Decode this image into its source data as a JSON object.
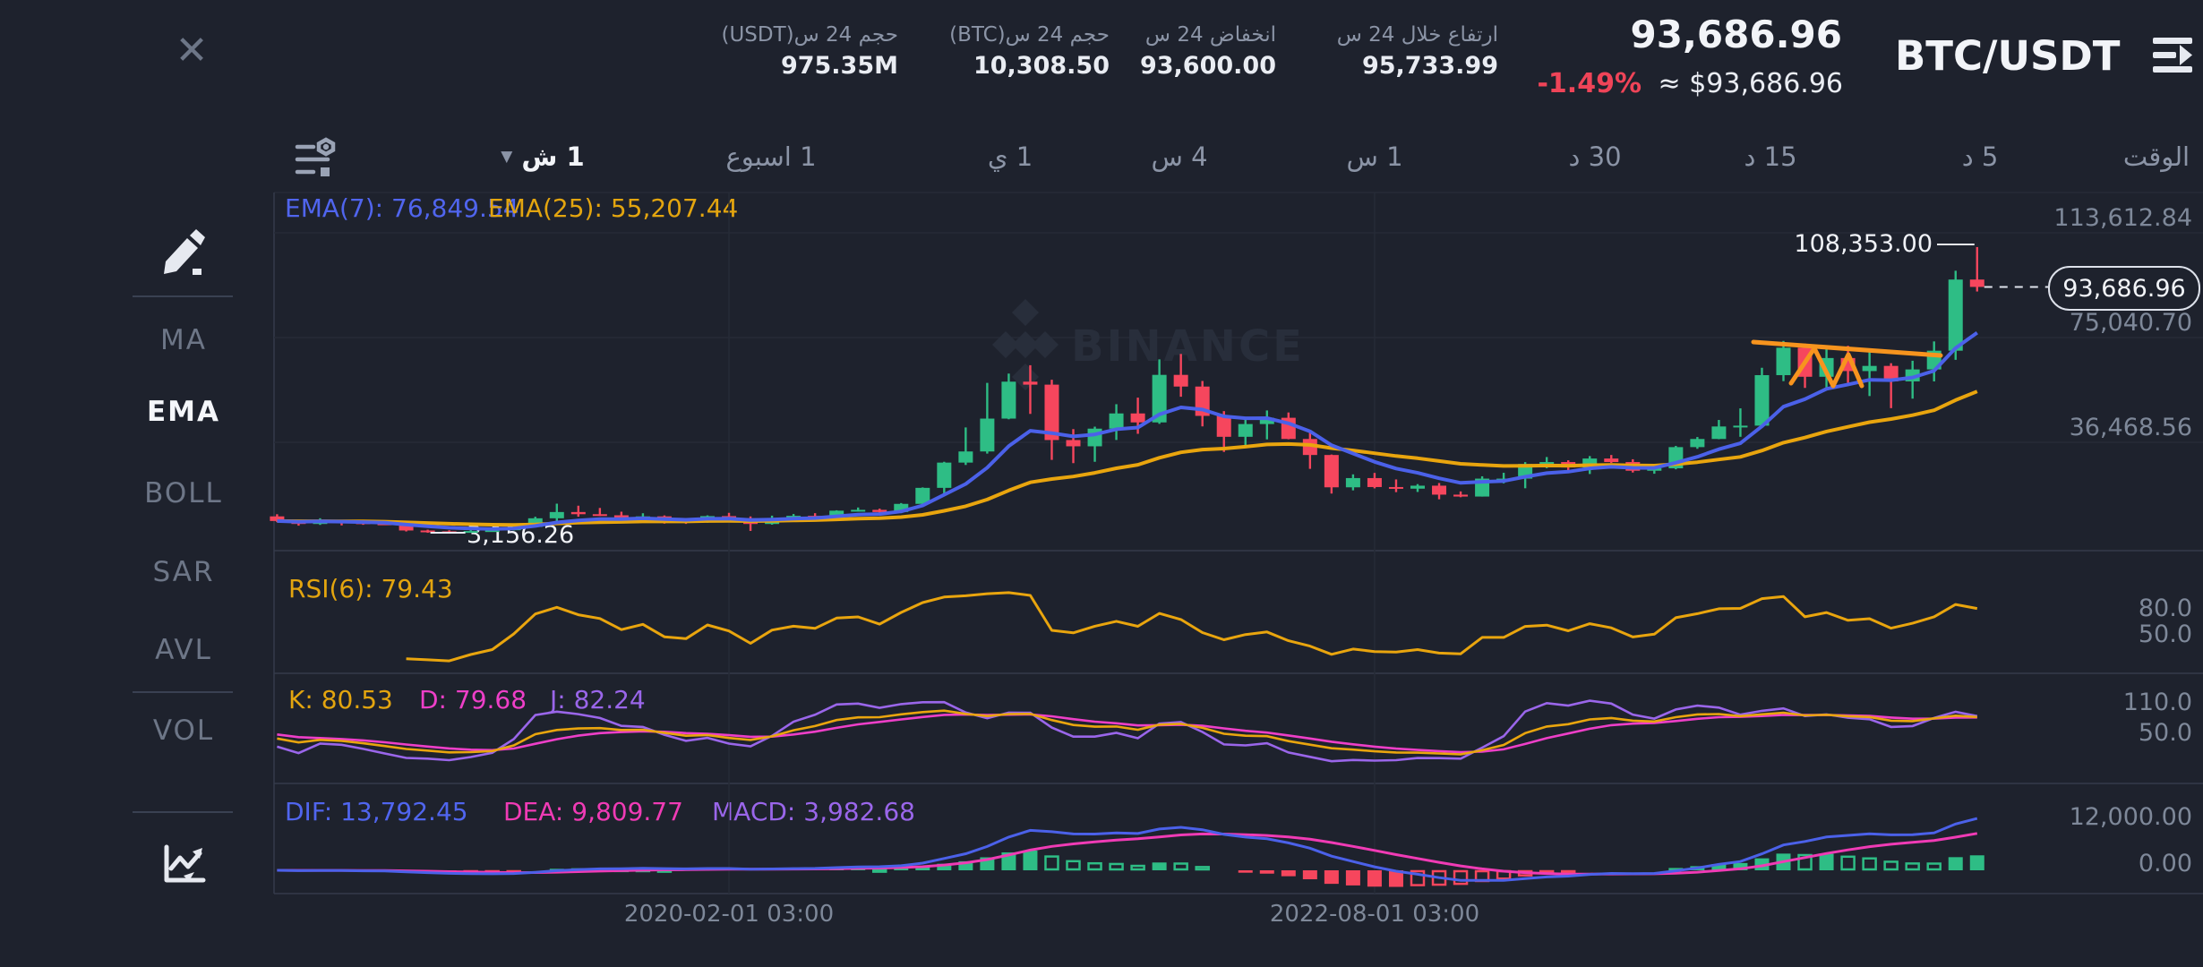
{
  "header": {
    "symbol": "BTC/USDT",
    "last_price": "93,686.96",
    "fiat_price": "≈ $93,686.96",
    "change_24h": "-1.49%",
    "stats": [
      {
        "label": "ارتفاع خلال 24 س",
        "value": "95,733.99"
      },
      {
        "label": "انخفاض 24 س",
        "value": "93,600.00"
      },
      {
        "label": "حجم 24 س(BTC)",
        "value": "10,308.50"
      },
      {
        "label": "حجم 24 س(USDT)",
        "value": "975.35M"
      }
    ]
  },
  "icons": {
    "close": "✕",
    "dropdown_caret": "▼",
    "switch_pair": "bars-with-arrow",
    "indicators_settings": "lines-and-shapes",
    "draw_tool": "pencil",
    "chart_style": "line-chart"
  },
  "toolbar": {
    "tabs": [
      {
        "label": "الوقت"
      },
      {
        "label": "5 د"
      },
      {
        "label": "15 د"
      },
      {
        "label": "30 د"
      },
      {
        "label": "1 س"
      },
      {
        "label": "4 س"
      },
      {
        "label": "1 ي"
      },
      {
        "label": "1 اسبوع"
      },
      {
        "label": "1 ش",
        "selected": true,
        "dropdown": true
      }
    ]
  },
  "sidebar": {
    "items": [
      {
        "label": "MA"
      },
      {
        "label": "EMA",
        "selected": true
      },
      {
        "label": "BOLL"
      },
      {
        "label": "SAR"
      },
      {
        "label": "AVL"
      },
      {
        "label": "VOL"
      }
    ]
  },
  "colors": {
    "up": "#2ebd85",
    "down": "#f6465d",
    "ema7": "#4b61e9",
    "ema25": "#e9a50e",
    "rsi": "#e9a50e",
    "k": "#e9a50e",
    "d": "#ee3fc8",
    "j": "#9a66ea",
    "dif": "#4b61e9",
    "dea": "#f03bb5",
    "macd": "#9a66ea",
    "change_negative": "#ef4458",
    "drawing": "#f7941e",
    "grid": "#262b37",
    "panel_border": "#353b4b",
    "watermark": "#282e3b"
  },
  "chart_data": {
    "type": "candlestick",
    "symbol": "BTC/USDT",
    "interval": "1 month",
    "watermark": "BINANCE",
    "overlays": [
      {
        "name": "EMA",
        "period": 7,
        "label": "EMA(7): 76,849.54"
      },
      {
        "name": "EMA",
        "period": 25,
        "label": "EMA(25): 55,207.44"
      }
    ],
    "oscillators": {
      "rsi": {
        "period": 6,
        "label": "RSI(6): 79.43"
      },
      "kdj": {
        "params": [
          9,
          3,
          3
        ],
        "labels": [
          "K: 80.53",
          "D: 79.68",
          "J: 82.24"
        ]
      },
      "macd": {
        "params": [
          12,
          26,
          9
        ],
        "labels": [
          "DIF: 13,792.45",
          "DEA: 9,809.77",
          "MACD: 3,982.68"
        ]
      }
    },
    "y_axis": {
      "main": [
        "113,612.84",
        "75,040.70",
        "36,468.56"
      ],
      "main_prices": [
        113612.84,
        75040.7,
        36468.56
      ],
      "rsi": [
        "80.0",
        "50.0"
      ],
      "kdj": [
        "110.0",
        "50.0"
      ],
      "macd": [
        "12,000.00",
        "0.00"
      ]
    },
    "x_axis": {
      "ticks": [
        {
          "label": "2020-02-01 03:00",
          "month": "2020-02"
        },
        {
          "label": "2022-08-01 03:00",
          "month": "2022-08"
        }
      ]
    },
    "annotations": {
      "high": {
        "label": "108,353.00",
        "price": 108353.0,
        "month": "2024-12"
      },
      "low": {
        "label": "3,156.26",
        "price": 3156.26,
        "month": "2018-12"
      },
      "current": {
        "label": "93,686.96",
        "price": 93686.96
      },
      "drawing": {
        "trendline": [
          [
            1958,
            382
          ],
          [
            2167,
            397
          ]
        ],
        "zigzag": [
          [
            2000,
            428
          ],
          [
            2026,
            389
          ],
          [
            2047,
            431
          ],
          [
            2064,
            396
          ],
          [
            2079,
            431
          ]
        ]
      }
    },
    "columns": [
      "month",
      "open",
      "high",
      "low",
      "close"
    ],
    "candles": [
      [
        "2018-05",
        9200,
        9990,
        7100,
        7500
      ],
      [
        "2018-06",
        7500,
        7750,
        5780,
        6400
      ],
      [
        "2018-07",
        6400,
        8500,
        6070,
        7700
      ],
      [
        "2018-08",
        7700,
        7760,
        5880,
        7000
      ],
      [
        "2018-09",
        7000,
        7410,
        6100,
        6600
      ],
      [
        "2018-10",
        6600,
        7480,
        6190,
        6300
      ],
      [
        "2018-11",
        6300,
        6560,
        3650,
        4000
      ],
      [
        "2018-12",
        4000,
        4300,
        3156.26,
        3700
      ],
      [
        "2019-01",
        3700,
        4080,
        3350,
        3400
      ],
      [
        "2019-02",
        3400,
        4190,
        3330,
        3800
      ],
      [
        "2019-03",
        3800,
        4290,
        3660,
        4100
      ],
      [
        "2019-04",
        4100,
        5620,
        4030,
        5300
      ],
      [
        "2019-05",
        5300,
        9050,
        5270,
        8500
      ],
      [
        "2019-06",
        8500,
        13880,
        7450,
        10800
      ],
      [
        "2019-07",
        10800,
        13130,
        9080,
        10000
      ],
      [
        "2019-08",
        10000,
        12300,
        9350,
        9600
      ],
      [
        "2019-09",
        9600,
        10920,
        7700,
        8300
      ],
      [
        "2019-10",
        8300,
        10350,
        7290,
        9200
      ],
      [
        "2019-11",
        9200,
        9550,
        6520,
        7500
      ],
      [
        "2019-12",
        7500,
        7690,
        6430,
        7200
      ],
      [
        "2020-01",
        7200,
        9570,
        6850,
        9300
      ],
      [
        "2020-02",
        9300,
        10500,
        8400,
        8500
      ],
      [
        "2020-03",
        8500,
        9170,
        3850,
        6400
      ],
      [
        "2020-04",
        6400,
        9460,
        6140,
        8600
      ],
      [
        "2020-05",
        8600,
        10070,
        8100,
        9400
      ],
      [
        "2020-06",
        9400,
        10380,
        8830,
        9100
      ],
      [
        "2020-07",
        9100,
        11440,
        8900,
        11300
      ],
      [
        "2020-08",
        11300,
        12470,
        11000,
        11600
      ],
      [
        "2020-09",
        11600,
        12050,
        9820,
        10800
      ],
      [
        "2020-10",
        10800,
        14100,
        10380,
        13800
      ],
      [
        "2020-11",
        13800,
        19860,
        13200,
        19700
      ],
      [
        "2020-12",
        19700,
        29300,
        17580,
        29000
      ],
      [
        "2021-01",
        29000,
        41950,
        28130,
        33100
      ],
      [
        "2021-02",
        33100,
        58350,
        32320,
        45200
      ],
      [
        "2021-03",
        45200,
        61780,
        44950,
        58800
      ],
      [
        "2021-04",
        58800,
        64850,
        46930,
        57700
      ],
      [
        "2021-05",
        57700,
        59500,
        30000,
        37300
      ],
      [
        "2021-06",
        37300,
        41330,
        28800,
        35000
      ],
      [
        "2021-07",
        35000,
        42230,
        29300,
        41500
      ],
      [
        "2021-08",
        41500,
        50500,
        37330,
        47100
      ],
      [
        "2021-09",
        47100,
        52920,
        39600,
        43800
      ],
      [
        "2021-10",
        43800,
        66990,
        43280,
        61300
      ],
      [
        "2021-11",
        61300,
        69000,
        53250,
        57000
      ],
      [
        "2021-12",
        57000,
        59050,
        42330,
        46200
      ],
      [
        "2022-01",
        46200,
        47950,
        32930,
        38500
      ],
      [
        "2022-02",
        38500,
        45820,
        34300,
        43200
      ],
      [
        "2022-03",
        43200,
        48200,
        37550,
        45500
      ],
      [
        "2022-04",
        45500,
        47450,
        37580,
        37700
      ],
      [
        "2022-05",
        37700,
        40020,
        26700,
        31800
      ],
      [
        "2022-06",
        31800,
        31970,
        17600,
        19900
      ],
      [
        "2022-07",
        19900,
        24670,
        18780,
        23300
      ],
      [
        "2022-08",
        23300,
        25200,
        19520,
        20000
      ],
      [
        "2022-09",
        20000,
        22800,
        18120,
        19400
      ],
      [
        "2022-10",
        19400,
        21080,
        18190,
        20500
      ],
      [
        "2022-11",
        20500,
        21480,
        15480,
        17200
      ],
      [
        "2022-12",
        17200,
        18390,
        16250,
        16500
      ],
      [
        "2023-01",
        16500,
        23960,
        16490,
        23100
      ],
      [
        "2023-02",
        23100,
        25250,
        21350,
        23100
      ],
      [
        "2023-03",
        23100,
        29180,
        19550,
        28500
      ],
      [
        "2023-04",
        28500,
        31050,
        26940,
        29200
      ],
      [
        "2023-05",
        29200,
        29850,
        25800,
        27200
      ],
      [
        "2023-06",
        27200,
        31400,
        24800,
        30500
      ],
      [
        "2023-07",
        30500,
        31800,
        28860,
        29200
      ],
      [
        "2023-08",
        29200,
        30230,
        25350,
        26000
      ],
      [
        "2023-09",
        26000,
        27480,
        24900,
        26900
      ],
      [
        "2023-10",
        26900,
        35150,
        26540,
        34700
      ],
      [
        "2023-11",
        34700,
        38420,
        34080,
        37700
      ],
      [
        "2023-12",
        37700,
        44700,
        37610,
        42300
      ],
      [
        "2024-01",
        42300,
        48970,
        38500,
        42600
      ],
      [
        "2024-02",
        42600,
        63930,
        42270,
        61200
      ],
      [
        "2024-03",
        61200,
        73790,
        59000,
        71300
      ],
      [
        "2024-04",
        71300,
        72800,
        56500,
        60600
      ],
      [
        "2024-05",
        60600,
        71950,
        56550,
        67500
      ],
      [
        "2024-06",
        67500,
        72010,
        58400,
        62700
      ],
      [
        "2024-07",
        62700,
        70080,
        53500,
        64600
      ],
      [
        "2024-08",
        64600,
        65600,
        49050,
        58900
      ],
      [
        "2024-09",
        58900,
        66500,
        52550,
        63300
      ],
      [
        "2024-10",
        63300,
        73620,
        58900,
        70200
      ],
      [
        "2024-11",
        70200,
        99660,
        66830,
        96400
      ],
      [
        "2024-12",
        96400,
        108353.0,
        92000,
        93686.96
      ]
    ]
  }
}
